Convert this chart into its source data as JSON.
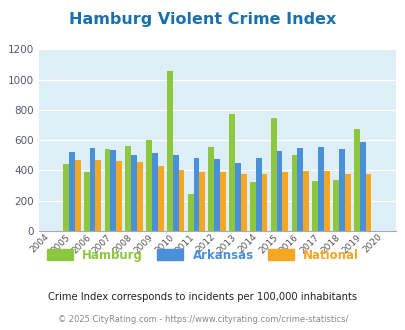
{
  "title": "Hamburg Violent Crime Index",
  "years": [
    2004,
    2005,
    2006,
    2007,
    2008,
    2009,
    2010,
    2011,
    2012,
    2013,
    2014,
    2015,
    2016,
    2017,
    2018,
    2019,
    2020
  ],
  "hamburg": [
    null,
    440,
    390,
    540,
    560,
    600,
    1055,
    245,
    555,
    775,
    325,
    750,
    500,
    330,
    340,
    675,
    null
  ],
  "arkansas": [
    null,
    525,
    550,
    535,
    500,
    515,
    500,
    480,
    478,
    448,
    480,
    528,
    550,
    555,
    545,
    590,
    null
  ],
  "national": [
    null,
    470,
    470,
    465,
    455,
    430,
    400,
    390,
    390,
    375,
    375,
    390,
    395,
    395,
    375,
    375,
    null
  ],
  "hamburg_color": "#8dc63f",
  "arkansas_color": "#4a90d9",
  "national_color": "#f5a623",
  "bg_color": "#ddeef6",
  "ylim": [
    0,
    1200
  ],
  "yticks": [
    0,
    200,
    400,
    600,
    800,
    1000,
    1200
  ],
  "subtitle": "Crime Index corresponds to incidents per 100,000 inhabitants",
  "footer": "© 2025 CityRating.com - https://www.cityrating.com/crime-statistics/",
  "legend_labels": [
    "Hamburg",
    "Arkansas",
    "National"
  ],
  "title_color": "#1a6faf",
  "subtitle_color": "#222222",
  "footer_color": "#888888"
}
